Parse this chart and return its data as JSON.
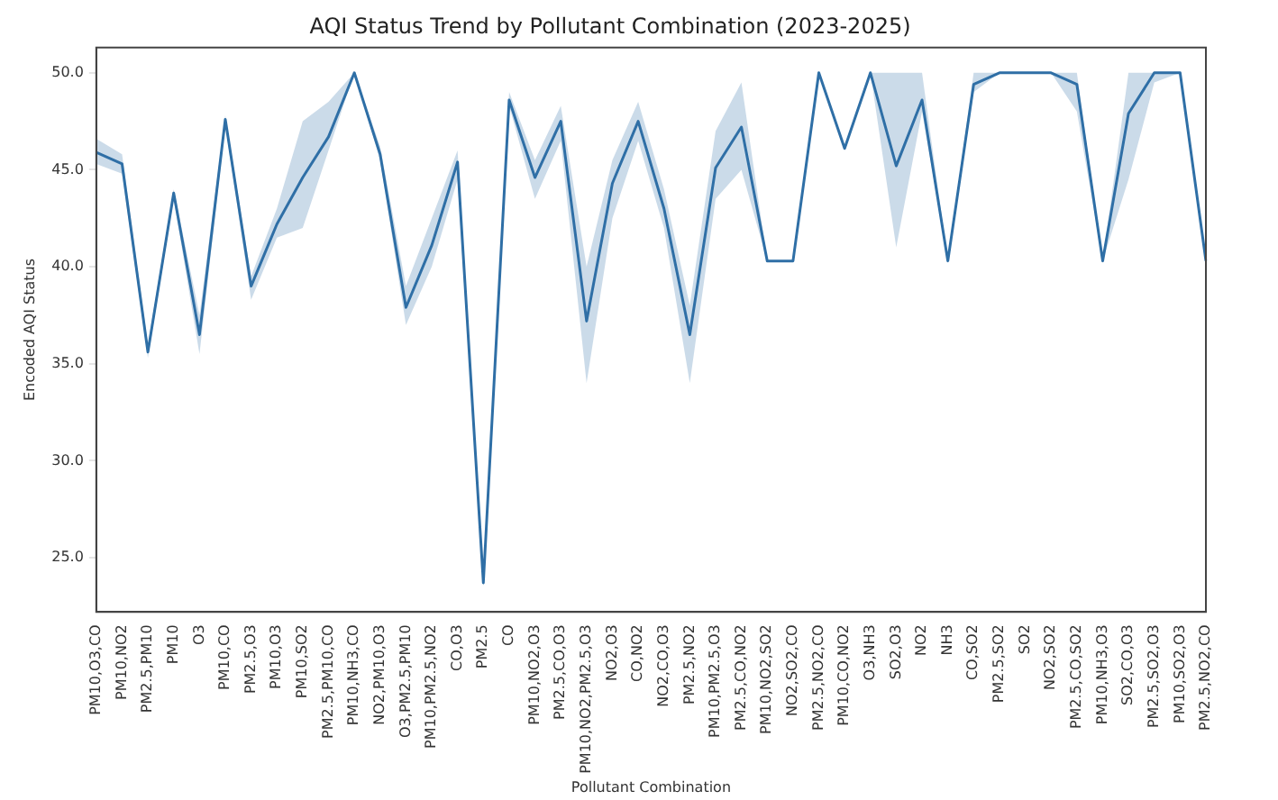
{
  "chart_data": {
    "type": "line",
    "title": "AQI Status Trend by Pollutant Combination (2023-2025)",
    "xlabel": "Pollutant Combination",
    "ylabel": "Encoded AQI Status",
    "categories": [
      "PM10,O3,CO",
      "PM10,NO2",
      "PM2.5,PM10",
      "PM10",
      "O3",
      "PM10,CO",
      "PM2.5,O3",
      "PM10,O3",
      "PM10,SO2",
      "PM2.5,PM10,CO",
      "PM10,NH3,CO",
      "NO2,PM10,O3",
      "O3,PM2.5,PM10",
      "PM10,PM2.5,NO2",
      "CO,O3",
      "PM2.5",
      "CO",
      "PM10,NO2,O3",
      "PM2.5,CO,O3",
      "PM10,NO2,PM2.5,O3",
      "NO2,O3",
      "CO,NO2",
      "NO2,CO,O3",
      "PM2.5,NO2",
      "PM10,PM2.5,O3",
      "PM2.5,CO,NO2",
      "PM10,NO2,SO2",
      "NO2,SO2,CO",
      "PM2.5,NO2,CO",
      "PM10,CO,NO2",
      "O3,NH3",
      "SO2,O3",
      "NO2",
      "NH3",
      "CO,SO2",
      "PM2.5,SO2",
      "SO2",
      "NO2,SO2",
      "PM2.5,CO,SO2",
      "PM10,NH3,O3",
      "SO2,CO,O3",
      "PM2.5,SO2,O3",
      "PM10,SO2,O3",
      "PM2.5,NO2,CO"
    ],
    "series": [
      {
        "color": "#2f6fa6",
        "values": [
          45.9,
          45.3,
          35.6,
          43.8,
          36.5,
          47.6,
          39,
          42.2,
          44.6,
          46.7,
          50,
          45.8,
          37.9,
          41.1,
          45.4,
          23.7,
          48.6,
          44.6,
          47.5,
          37.2,
          44.3,
          47.5,
          43,
          36.5,
          45.1,
          47.2,
          40.3,
          40.3,
          50,
          46.1,
          50,
          45.2,
          48.6,
          40.3,
          49.4,
          50,
          50,
          50,
          49.4,
          40.3,
          47.9,
          50,
          50,
          40.3
        ],
        "lower": [
          45.3,
          44.8,
          35.3,
          43.5,
          35.5,
          47.3,
          38.3,
          41.5,
          42,
          46,
          50,
          45.5,
          37,
          40,
          44.5,
          23.5,
          48.3,
          43.5,
          46.5,
          34,
          42.5,
          46.5,
          42,
          34,
          43.5,
          45,
          40.3,
          40.3,
          50,
          46.1,
          50,
          41,
          48,
          40.3,
          49,
          50,
          50,
          50,
          48,
          40.3,
          44.5,
          49.5,
          50,
          40.3
        ],
        "upper": [
          46.6,
          45.8,
          36,
          44,
          37.5,
          47.8,
          39.5,
          43,
          47.5,
          48.5,
          50,
          46.2,
          39,
          42.5,
          46,
          24,
          49,
          45.5,
          48.3,
          40,
          45.5,
          48.5,
          44,
          38,
          47,
          49.5,
          40.3,
          40.3,
          50,
          46.1,
          50,
          50,
          50,
          40.3,
          50,
          50,
          50,
          50,
          50,
          40.3,
          50,
          50,
          50,
          40.3
        ]
      }
    ],
    "ylim": [
      22.2,
      51.3
    ],
    "yticks": [
      {
        "value": 25,
        "label": "25.0"
      },
      {
        "value": 30,
        "label": "30.0"
      },
      {
        "value": 35,
        "label": "35.0"
      },
      {
        "value": 40,
        "label": "40.0"
      },
      {
        "value": 45,
        "label": "45.0"
      },
      {
        "value": 50,
        "label": "50.0"
      }
    ],
    "grid": false,
    "legend": false
  }
}
